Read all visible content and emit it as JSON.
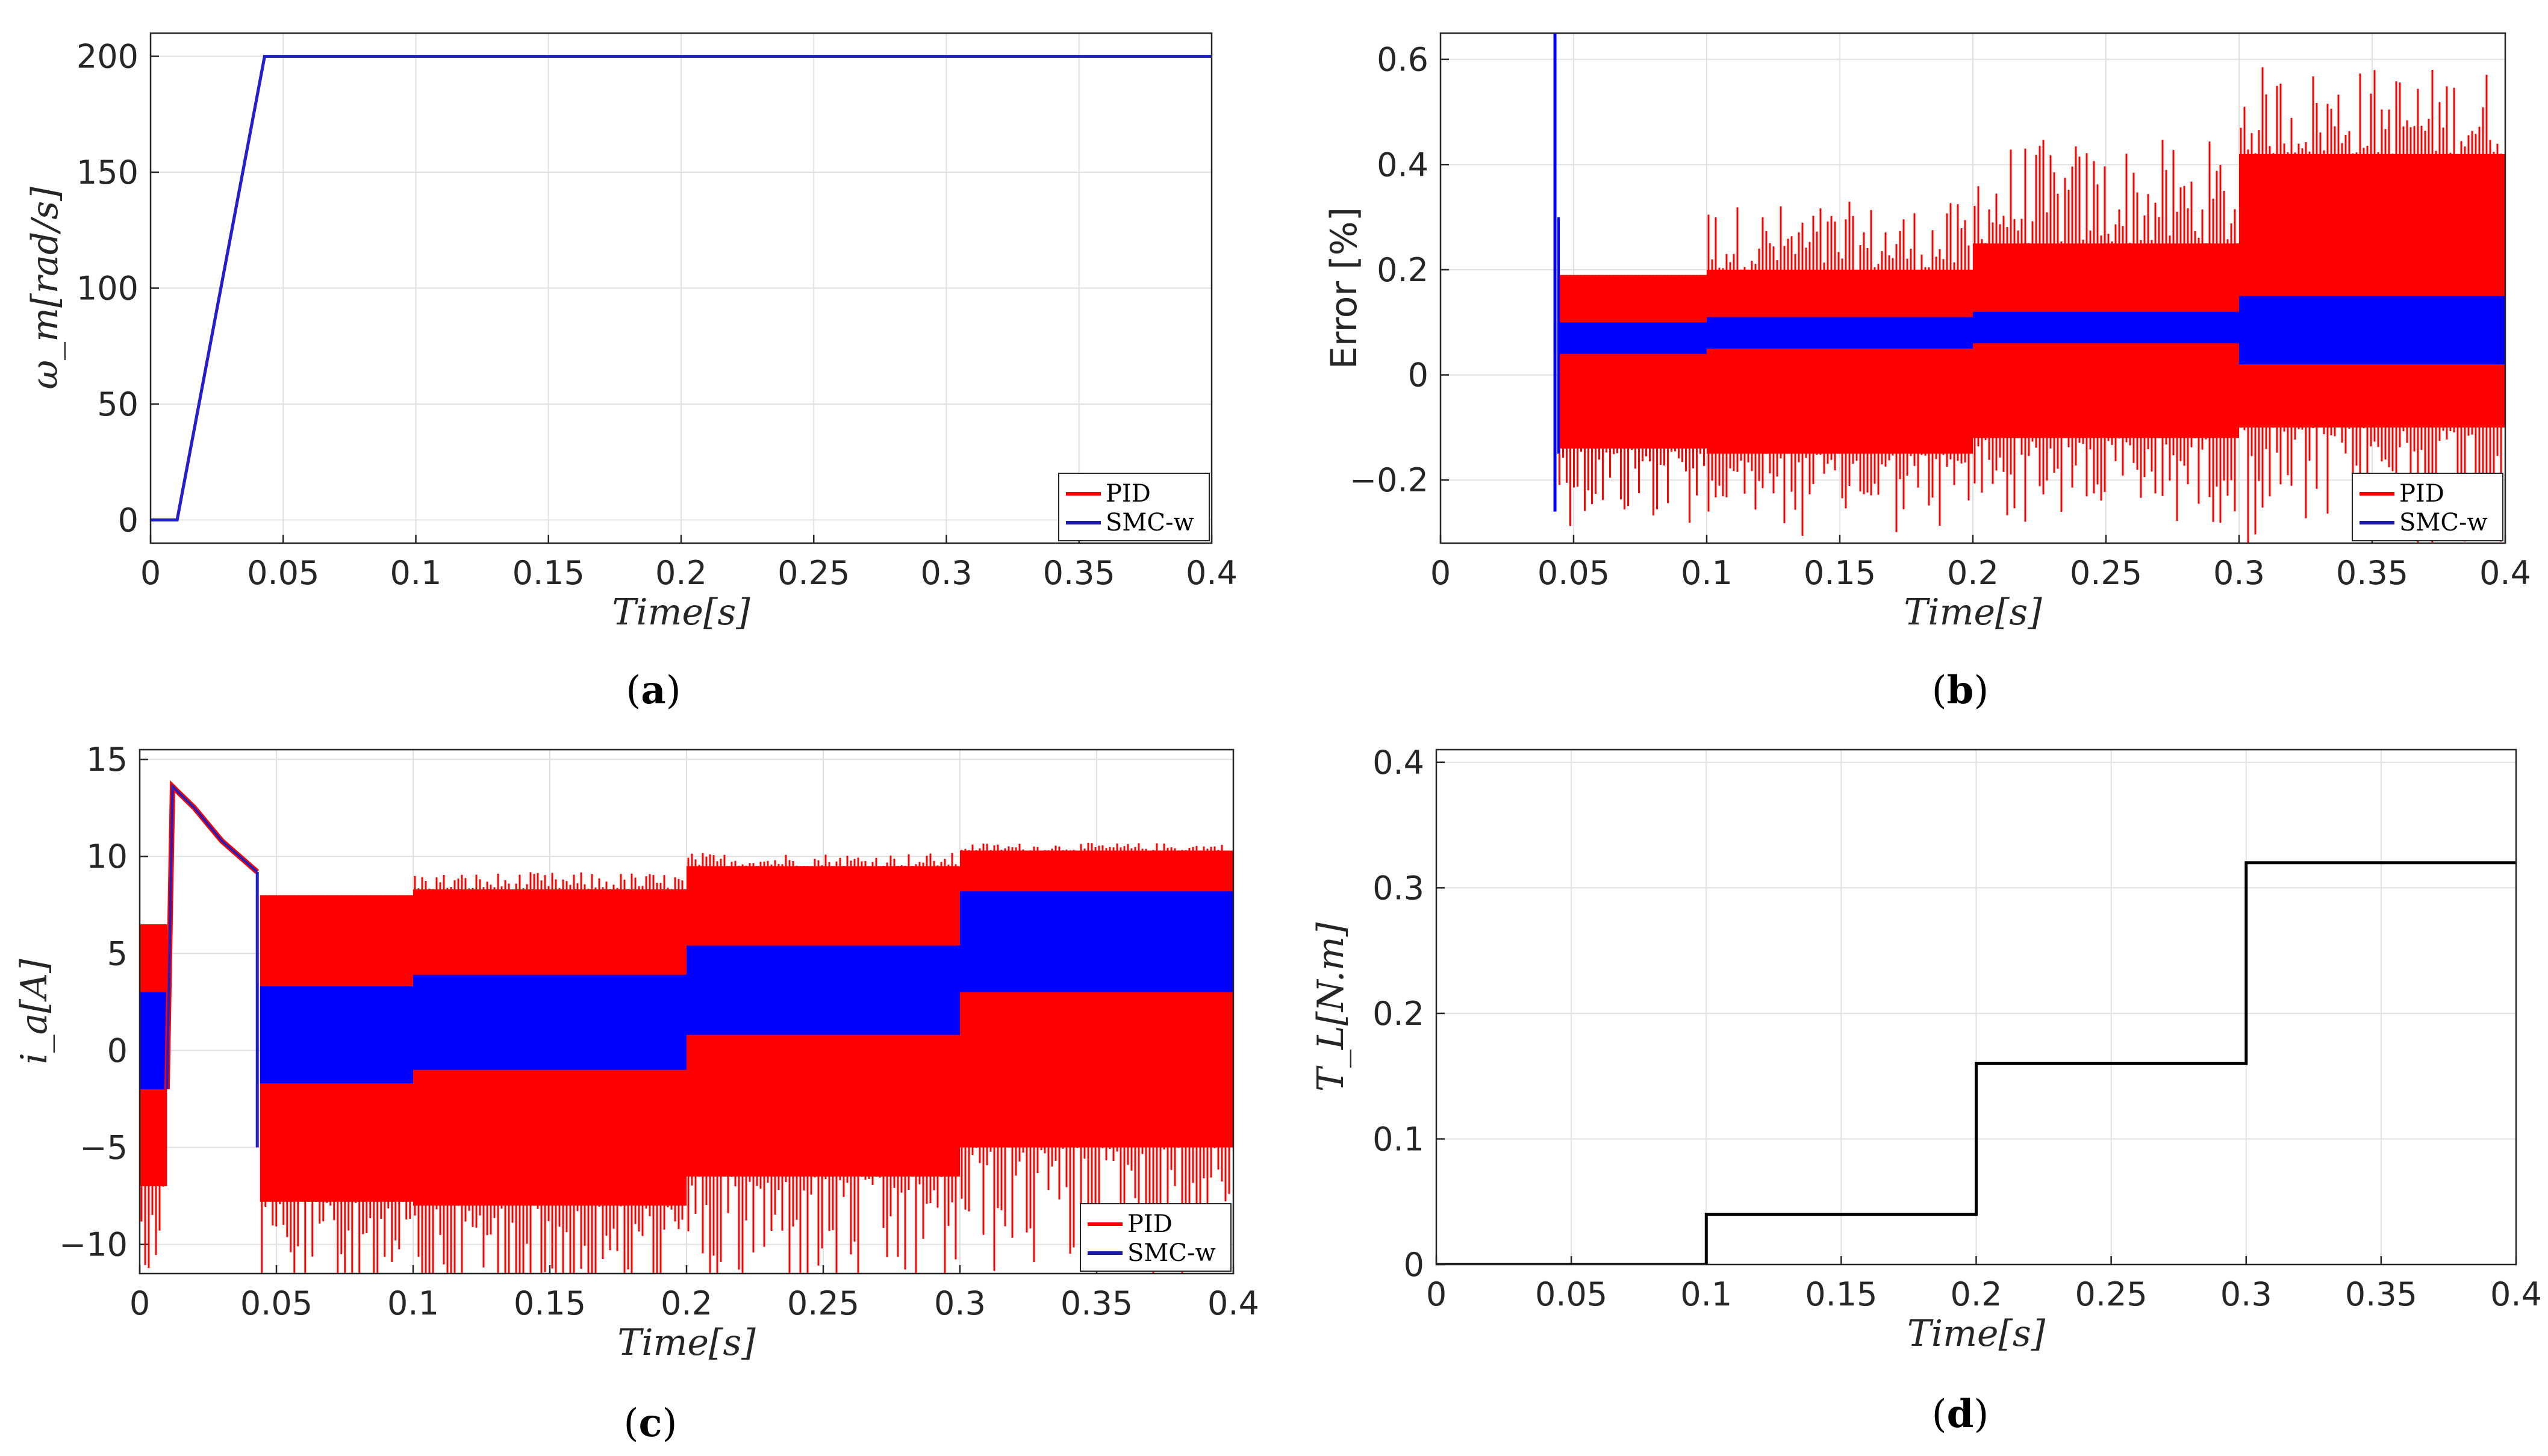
{
  "chart_data": [
    {
      "id": "a",
      "type": "line",
      "panel_label": "a",
      "xlabel": "Time[s]",
      "ylabel": "ω_m[rad/s]",
      "xlim": [
        0,
        0.4
      ],
      "ylim": [
        -10,
        210
      ],
      "xticks": [
        "0",
        "0.05",
        "0.1",
        "0.15",
        "0.2",
        "0.25",
        "0.3",
        "0.35",
        "0.4"
      ],
      "yticks": [
        "0",
        "50",
        "100",
        "150",
        "200"
      ],
      "legend": [
        "PID",
        "SMC-w"
      ],
      "series": [
        {
          "name": "PID",
          "color": "#ff0000",
          "x": [
            0,
            0.01,
            0.043,
            0.4
          ],
          "y": [
            0,
            0,
            200,
            200
          ]
        },
        {
          "name": "SMC-w",
          "color": "#2020d0",
          "x": [
            0,
            0.01,
            0.043,
            0.4
          ],
          "y": [
            0,
            0,
            200,
            200
          ]
        }
      ]
    },
    {
      "id": "b",
      "type": "line",
      "panel_label": "b",
      "xlabel": "Time[s]",
      "ylabel": "Error [%]",
      "xlim": [
        0,
        0.4
      ],
      "ylim": [
        -0.32,
        0.65
      ],
      "xticks": [
        "0",
        "0.05",
        "0.1",
        "0.15",
        "0.2",
        "0.25",
        "0.3",
        "0.35",
        "0.4"
      ],
      "yticks": [
        "−0.2",
        "0",
        "0.2",
        "0.4",
        "0.6"
      ],
      "legend": [
        "PID",
        "SMC-w"
      ],
      "envelopes": [
        {
          "name": "PID",
          "color": "#ff0000",
          "segments": [
            {
              "x0": 0.044,
              "x1": 0.1,
              "upper": 0.19,
              "lower": -0.14,
              "spike": 0
            },
            {
              "x0": 0.1,
              "x1": 0.2,
              "upper": 0.2,
              "lower": -0.15,
              "spike": 0.33
            },
            {
              "x0": 0.2,
              "x1": 0.3,
              "upper": 0.25,
              "lower": -0.12,
              "spike": 0.45
            },
            {
              "x0": 0.3,
              "x1": 0.4,
              "upper": 0.42,
              "lower": -0.1,
              "spike": 0.59
            }
          ]
        },
        {
          "name": "SMC-w",
          "color": "#0000ff",
          "segments": [
            {
              "x0": 0.044,
              "x1": 0.1,
              "upper": 0.1,
              "lower": 0.04
            },
            {
              "x0": 0.1,
              "x1": 0.2,
              "upper": 0.11,
              "lower": 0.05
            },
            {
              "x0": 0.2,
              "x1": 0.3,
              "upper": 0.12,
              "lower": 0.06
            },
            {
              "x0": 0.3,
              "x1": 0.4,
              "upper": 0.15,
              "lower": 0.02
            }
          ]
        }
      ],
      "startup_spike": {
        "x": 0.043,
        "max": 0.65,
        "min": -0.26
      }
    },
    {
      "id": "c",
      "type": "line",
      "panel_label": "c",
      "xlabel": "Time[s]",
      "ylabel": "i_a[A]",
      "xlim": [
        0,
        0.4
      ],
      "ylim": [
        -11.5,
        15.5
      ],
      "xticks": [
        "0",
        "0.05",
        "0.1",
        "0.15",
        "0.2",
        "0.25",
        "0.3",
        "0.35",
        "0.4"
      ],
      "yticks": [
        "−10",
        "−5",
        "0",
        "5",
        "10",
        "15"
      ],
      "legend": [
        "PID",
        "SMC-w"
      ],
      "envelopes": [
        {
          "name": "PID",
          "color": "#ff0000",
          "segments": [
            {
              "x0": 0.0,
              "x1": 0.01,
              "upper": 6.5,
              "lower": -7.0,
              "spike": 0
            },
            {
              "x0": 0.044,
              "x1": 0.1,
              "upper": 8.0,
              "lower": -7.8,
              "spike": 0
            },
            {
              "x0": 0.1,
              "x1": 0.2,
              "upper": 8.3,
              "lower": -8.0,
              "spike": 9.2
            },
            {
              "x0": 0.2,
              "x1": 0.3,
              "upper": 9.5,
              "lower": -6.5,
              "spike": 10.2
            },
            {
              "x0": 0.3,
              "x1": 0.4,
              "upper": 10.3,
              "lower": -5.0,
              "spike": 10.7
            }
          ]
        },
        {
          "name": "SMC-w",
          "color": "#0000ff",
          "segments": [
            {
              "x0": 0.0,
              "x1": 0.01,
              "upper": 3.0,
              "lower": -2.0
            },
            {
              "x0": 0.044,
              "x1": 0.1,
              "upper": 3.3,
              "lower": -1.7
            },
            {
              "x0": 0.1,
              "x1": 0.2,
              "upper": 3.9,
              "lower": -1.0
            },
            {
              "x0": 0.2,
              "x1": 0.3,
              "upper": 5.4,
              "lower": 0.8
            },
            {
              "x0": 0.3,
              "x1": 0.4,
              "upper": 8.2,
              "lower": 3.0
            }
          ]
        }
      ],
      "startup_curve": {
        "x": [
          0.01,
          0.012,
          0.02,
          0.03,
          0.043
        ],
        "y": [
          -2,
          13.6,
          12.5,
          10.8,
          9.2
        ]
      }
    },
    {
      "id": "d",
      "type": "line",
      "panel_label": "d",
      "xlabel": "Time[s]",
      "ylabel": "T_L[N.m]",
      "xlim": [
        0,
        0.4
      ],
      "ylim": [
        0,
        0.41
      ],
      "xticks": [
        "0",
        "0.05",
        "0.1",
        "0.15",
        "0.2",
        "0.25",
        "0.3",
        "0.35",
        "0.4"
      ],
      "yticks": [
        "0",
        "0.1",
        "0.2",
        "0.3",
        "0.4"
      ],
      "series": [
        {
          "name": "T_L",
          "color": "#000000",
          "x": [
            0,
            0.1,
            0.1,
            0.2,
            0.2,
            0.3,
            0.3,
            0.4
          ],
          "y": [
            0,
            0,
            0.04,
            0.04,
            0.16,
            0.16,
            0.32,
            0.32
          ]
        }
      ]
    }
  ]
}
